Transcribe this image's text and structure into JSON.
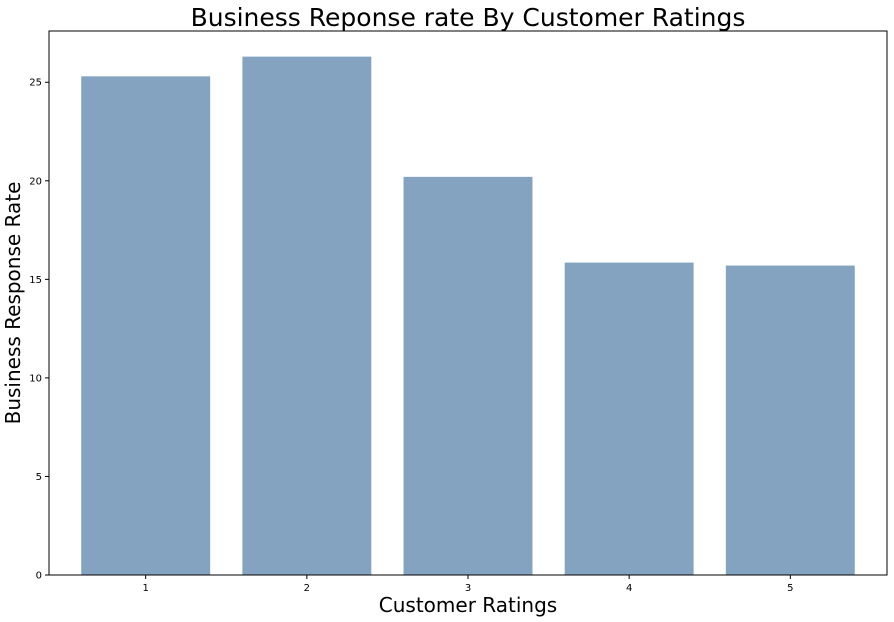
{
  "chart_data": {
    "type": "bar",
    "title": "Business Reponse rate By Customer Ratings",
    "xlabel": "Customer Ratings",
    "ylabel": "Business Response Rate",
    "categories": [
      "1",
      "2",
      "3",
      "4",
      "5"
    ],
    "values": [
      25.3,
      26.3,
      20.2,
      15.85,
      15.7
    ],
    "ylim": [
      0,
      27.6
    ],
    "yticks": [
      0,
      5,
      10,
      15,
      20,
      25
    ],
    "grid": false,
    "bar_color": "#84a3c0"
  }
}
